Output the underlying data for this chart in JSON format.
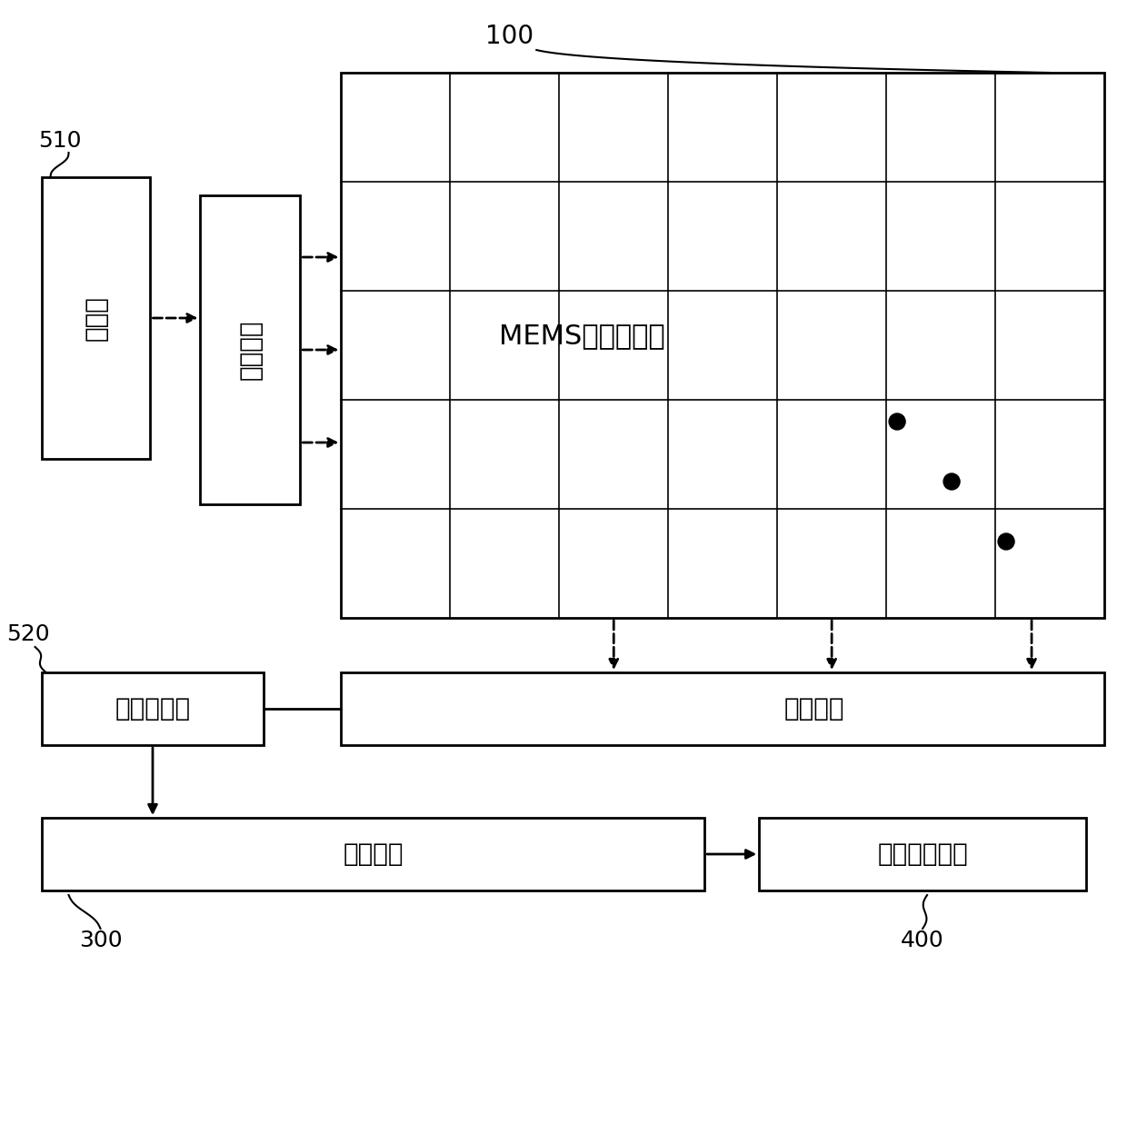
{
  "bg_color": "#ffffff",
  "text_color": "#000000",
  "line_color": "#000000",
  "font_size_label": 20,
  "font_size_ref": 18,
  "font_size_array_label": 22,
  "array_label": "MEMS传感器阵列",
  "array_ref": "100",
  "voltage_source_label": "电压源",
  "voltage_source_ref": "510",
  "row_switch_label": "行选开关",
  "col_switch_label": "列选开关",
  "current_source_label": "恒流源模块",
  "current_source_ref": "520",
  "op_circuit_label": "运算电路",
  "op_circuit_ref": "300",
  "data_proc_label": "数据处理单元",
  "data_proc_ref": "400"
}
